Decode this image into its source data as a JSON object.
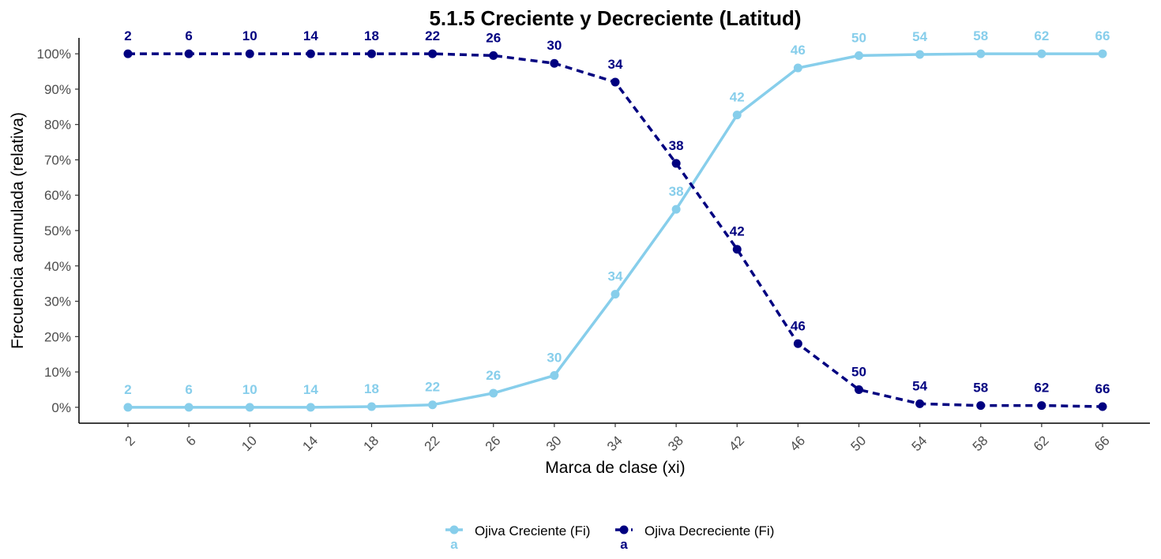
{
  "chart_data": {
    "type": "line",
    "title": "5.1.5 Creciente y Decreciente (Latitud)",
    "xlabel": "Marca de clase (xi)",
    "ylabel": "Frecuencia acumulada (relativa)",
    "categories": [
      "2",
      "6",
      "10",
      "14",
      "18",
      "22",
      "26",
      "30",
      "34",
      "38",
      "42",
      "46",
      "50",
      "54",
      "58",
      "62",
      "66"
    ],
    "ylim": [
      -0.045,
      1.045
    ],
    "yticks": [
      0,
      0.1,
      0.2,
      0.3,
      0.4,
      0.5,
      0.6,
      0.7,
      0.8,
      0.9,
      1.0
    ],
    "ytick_labels": [
      "0%",
      "10%",
      "20%",
      "30%",
      "40%",
      "50%",
      "60%",
      "70%",
      "80%",
      "90%",
      "100%"
    ],
    "grid": false,
    "legend_position": "bottom",
    "series": [
      {
        "name": "Ojiva Creciente (Fi)",
        "color": "#87CEEB",
        "line_style": "solid",
        "values": [
          0.0,
          0.0,
          0.0,
          0.0,
          0.002,
          0.007,
          0.04,
          0.09,
          0.32,
          0.56,
          0.827,
          0.96,
          0.995,
          0.998,
          1.0,
          1.0,
          1.0
        ],
        "labels": [
          "2",
          "6",
          "10",
          "14",
          "18",
          "22",
          "26",
          "30",
          "34",
          "38",
          "42",
          "46",
          "50",
          "54",
          "58",
          "62",
          "66"
        ]
      },
      {
        "name": "Ojiva Decreciente (Fi)",
        "color": "#000080",
        "line_style": "dashed",
        "values": [
          1.0,
          1.0,
          1.0,
          1.0,
          1.0,
          1.0,
          0.995,
          0.973,
          0.92,
          0.69,
          0.447,
          0.18,
          0.05,
          0.01,
          0.005,
          0.005,
          0.002
        ],
        "labels": [
          "2",
          "6",
          "10",
          "14",
          "18",
          "22",
          "26",
          "30",
          "34",
          "38",
          "42",
          "46",
          "50",
          "54",
          "58",
          "62",
          "66"
        ]
      }
    ],
    "legend_glyph": "a"
  }
}
